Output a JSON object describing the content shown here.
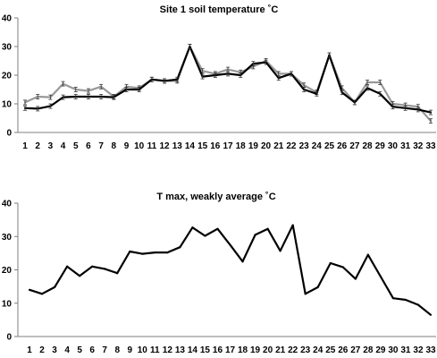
{
  "chart_data": [
    {
      "type": "line",
      "title": "Site 1 soil temperature ˚C",
      "xlabel": "",
      "ylabel": "",
      "ylim": [
        0,
        40
      ],
      "yticks": [
        0,
        10,
        20,
        30,
        40
      ],
      "x": [
        1,
        2,
        3,
        4,
        5,
        6,
        7,
        8,
        9,
        10,
        11,
        12,
        13,
        14,
        15,
        16,
        17,
        18,
        19,
        20,
        21,
        22,
        23,
        24,
        25,
        26,
        27,
        28,
        29,
        30,
        31,
        32,
        33
      ],
      "grid": false,
      "legend": "none",
      "series": [
        {
          "color": "#999999",
          "values": [
            10.5,
            12.5,
            12.3,
            17.0,
            15.0,
            14.5,
            16.0,
            12.5,
            16.0,
            15.5,
            18.5,
            18.0,
            18.0,
            30.0,
            21.5,
            20.5,
            22.0,
            21.0,
            23.0,
            25.0,
            20.5,
            20.5,
            16.5,
            14.0,
            27.0,
            15.5,
            10.5,
            17.5,
            17.5,
            10.0,
            9.5,
            9.0,
            4.0
          ],
          "error_bars": true
        },
        {
          "color": "#000000",
          "values": [
            8.5,
            8.3,
            9.2,
            12.3,
            12.5,
            12.5,
            12.5,
            12.3,
            15.0,
            15.0,
            18.5,
            18.0,
            18.5,
            30.0,
            19.5,
            20.0,
            20.5,
            20.0,
            24.0,
            24.5,
            19.0,
            20.5,
            15.0,
            13.5,
            27.0,
            14.0,
            10.5,
            15.5,
            13.5,
            9.0,
            8.5,
            8.0,
            7.0
          ],
          "error_bars": true
        }
      ]
    },
    {
      "type": "line",
      "title": "T max, weakly  average  ˚C",
      "xlabel": "",
      "ylabel": "",
      "ylim": [
        0,
        40
      ],
      "yticks": [
        0,
        10,
        20,
        30,
        40
      ],
      "x": [
        1,
        2,
        3,
        4,
        5,
        6,
        7,
        8,
        9,
        10,
        11,
        12,
        13,
        14,
        15,
        16,
        17,
        18,
        19,
        20,
        21,
        22,
        23,
        24,
        25,
        26,
        27,
        28,
        29,
        30,
        31,
        32,
        33
      ],
      "grid": false,
      "legend": "none",
      "series": [
        {
          "color": "#000000",
          "values": [
            14.0,
            12.8,
            14.8,
            21.0,
            18.2,
            21.0,
            20.3,
            19.0,
            25.5,
            24.8,
            25.2,
            25.2,
            26.8,
            32.7,
            30.2,
            32.3,
            27.5,
            22.5,
            30.5,
            32.3,
            25.7,
            33.4,
            12.8,
            14.8,
            22.0,
            20.8,
            17.3,
            24.5,
            18.0,
            11.5,
            11.0,
            9.5,
            6.5
          ]
        }
      ]
    }
  ]
}
